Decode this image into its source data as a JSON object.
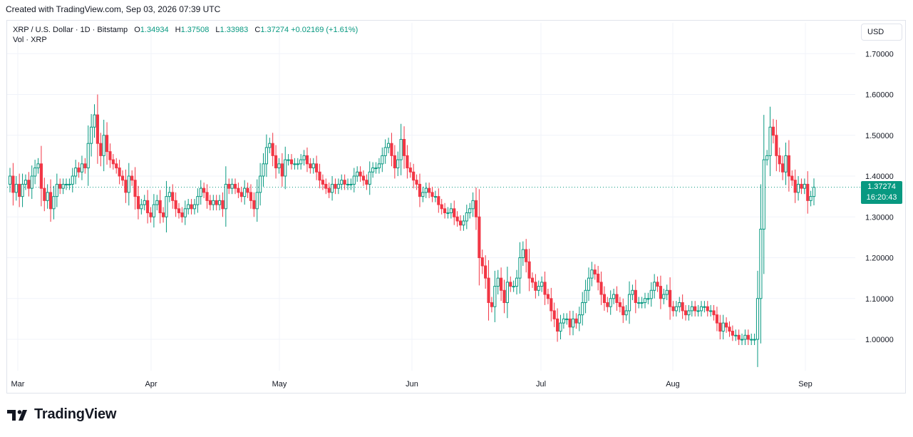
{
  "header": {
    "created_text": "Created with TradingView.com, Sep 03, 2026 07:39 UTC"
  },
  "legend": {
    "symbol": "XRP / U.S. Dollar · 1D · Bitstamp",
    "open_label": "O",
    "open_value": "1.34934",
    "high_label": "H",
    "high_value": "1.37508",
    "low_label": "L",
    "low_value": "1.33983",
    "close_label": "C",
    "close_value": "1.37274",
    "change": "+0.02169 (+1.61%)",
    "volume_label": "Vol · XRP"
  },
  "currency_button": "USD",
  "last_price": {
    "price": "1.37274",
    "countdown": "16:20:43"
  },
  "footer": {
    "brand": "TradingView",
    "logo_icon": "tradingview-logo-icon"
  },
  "colors": {
    "up": "#089981",
    "down": "#f23645",
    "grid": "#f0f3fa",
    "text": "#131722"
  },
  "chart_data": {
    "type": "candlestick",
    "title": "XRP / U.S. Dollar · 1D · Bitstamp",
    "ylabel": "",
    "xlabel": "",
    "y_ticks": [
      "1.70000",
      "1.60000",
      "1.50000",
      "1.40000",
      "1.30000",
      "1.20000",
      "1.10000",
      "1.00000"
    ],
    "x_ticks": [
      "Mar",
      "Apr",
      "May",
      "Jun",
      "Jul",
      "Aug",
      "Sep"
    ],
    "ylim": [
      0.91,
      1.72
    ],
    "grid": true,
    "last_price_line": 1.37274,
    "closes": [
      1.4,
      1.36,
      1.38,
      1.35,
      1.38,
      1.39,
      1.37,
      1.4,
      1.42,
      1.43,
      1.37,
      1.34,
      1.36,
      1.32,
      1.35,
      1.38,
      1.37,
      1.38,
      1.38,
      1.38,
      1.4,
      1.42,
      1.41,
      1.43,
      1.42,
      1.48,
      1.52,
      1.55,
      1.48,
      1.45,
      1.5,
      1.46,
      1.44,
      1.43,
      1.42,
      1.4,
      1.39,
      1.36,
      1.4,
      1.39,
      1.35,
      1.32,
      1.33,
      1.34,
      1.31,
      1.3,
      1.33,
      1.34,
      1.31,
      1.3,
      1.35,
      1.36,
      1.34,
      1.32,
      1.31,
      1.3,
      1.32,
      1.33,
      1.32,
      1.33,
      1.35,
      1.37,
      1.36,
      1.34,
      1.33,
      1.34,
      1.33,
      1.34,
      1.32,
      1.38,
      1.37,
      1.38,
      1.37,
      1.36,
      1.35,
      1.37,
      1.36,
      1.34,
      1.32,
      1.36,
      1.4,
      1.43,
      1.47,
      1.48,
      1.45,
      1.42,
      1.43,
      1.4,
      1.44,
      1.44,
      1.43,
      1.43,
      1.43,
      1.44,
      1.45,
      1.43,
      1.42,
      1.43,
      1.41,
      1.39,
      1.38,
      1.37,
      1.36,
      1.38,
      1.37,
      1.38,
      1.39,
      1.38,
      1.38,
      1.38,
      1.4,
      1.41,
      1.4,
      1.39,
      1.38,
      1.41,
      1.42,
      1.42,
      1.43,
      1.45,
      1.47,
      1.48,
      1.45,
      1.42,
      1.44,
      1.49,
      1.45,
      1.42,
      1.41,
      1.39,
      1.38,
      1.35,
      1.36,
      1.37,
      1.36,
      1.35,
      1.35,
      1.33,
      1.32,
      1.31,
      1.31,
      1.32,
      1.3,
      1.29,
      1.28,
      1.29,
      1.31,
      1.32,
      1.34,
      1.3,
      1.2,
      1.18,
      1.15,
      1.09,
      1.08,
      1.13,
      1.15,
      1.12,
      1.09,
      1.14,
      1.13,
      1.13,
      1.15,
      1.2,
      1.22,
      1.19,
      1.15,
      1.14,
      1.12,
      1.13,
      1.14,
      1.11,
      1.1,
      1.07,
      1.05,
      1.02,
      1.04,
      1.05,
      1.05,
      1.03,
      1.05,
      1.04,
      1.06,
      1.09,
      1.12,
      1.15,
      1.17,
      1.16,
      1.14,
      1.11,
      1.09,
      1.08,
      1.1,
      1.11,
      1.09,
      1.08,
      1.06,
      1.07,
      1.11,
      1.12,
      1.09,
      1.09,
      1.09,
      1.1,
      1.1,
      1.12,
      1.14,
      1.13,
      1.1,
      1.11,
      1.12,
      1.08,
      1.07,
      1.08,
      1.09,
      1.07,
      1.06,
      1.07,
      1.08,
      1.07,
      1.07,
      1.08,
      1.08,
      1.07,
      1.07,
      1.06,
      1.04,
      1.02,
      1.04,
      1.03,
      1.02,
      1.01,
      1.01,
      1.0,
      1.0,
      1.01,
      1.0,
      1.0,
      1.0,
      1.1,
      1.27,
      1.44,
      1.45,
      1.52,
      1.5,
      1.45,
      1.43,
      1.41,
      1.45,
      1.4,
      1.39,
      1.36,
      1.38,
      1.37,
      1.38,
      1.34,
      1.35,
      1.37274
    ]
  }
}
